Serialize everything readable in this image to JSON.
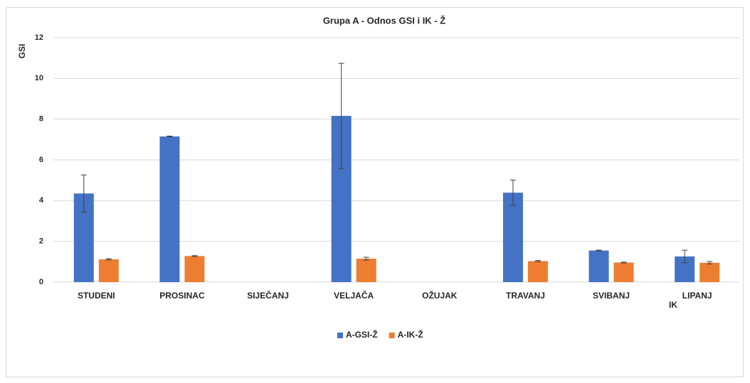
{
  "chart_data": {
    "type": "bar",
    "title": "Grupa A - Odnos GSI i IK - Ž",
    "x_label": "IK",
    "y_label": "GSI",
    "categories": [
      "STUDENI",
      "PROSINAC",
      "SIJEČANJ",
      "VELJAČA",
      "OŽUJAK",
      "TRAVANJ",
      "SVIBANJ",
      "LIPANJ"
    ],
    "series": [
      {
        "name": "A-GSI-Ž",
        "color": "#4472c4",
        "values": [
          4.35,
          7.15,
          null,
          8.16,
          null,
          4.39,
          1.55,
          1.26
        ],
        "errors": [
          0.91,
          0.02,
          null,
          2.58,
          null,
          0.62,
          0.02,
          0.31
        ]
      },
      {
        "name": "A-IK-Ž",
        "color": "#ed7d31",
        "values": [
          1.12,
          1.28,
          null,
          1.15,
          null,
          1.03,
          0.96,
          0.95
        ],
        "errors": [
          0.03,
          0.02,
          null,
          0.07,
          null,
          0.03,
          0.02,
          0.06
        ]
      }
    ],
    "ylim": [
      0,
      12
    ],
    "yticks": [
      0,
      2,
      4,
      6,
      8,
      10,
      12
    ],
    "grid": true,
    "legend": "bottom"
  }
}
